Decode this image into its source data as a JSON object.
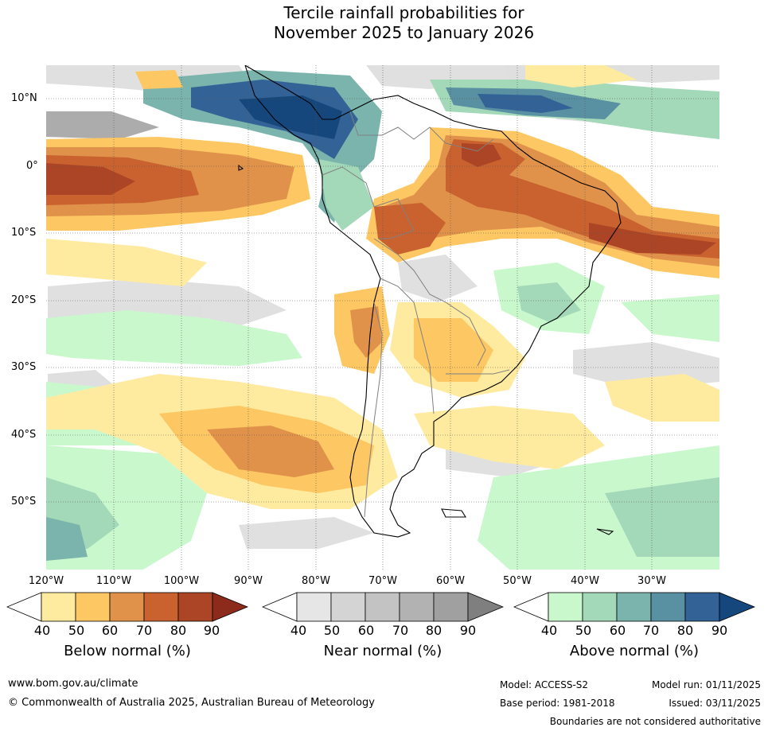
{
  "title": {
    "line1": "Tercile rainfall probabilities for",
    "line2": "November 2025 to January 2026"
  },
  "map": {
    "latitude_labels": [
      "10°N",
      "0°",
      "10°S",
      "20°S",
      "30°S",
      "40°S",
      "50°S"
    ],
    "longitude_labels": [
      "120°W",
      "110°W",
      "100°W",
      "90°W",
      "80°W",
      "70°W",
      "60°W",
      "50°W",
      "40°W",
      "30°W"
    ],
    "longitude_values": [
      -120,
      -110,
      -100,
      -90,
      -80,
      -70,
      -60,
      -50,
      -40,
      -30
    ],
    "latitude_values": [
      10,
      0,
      -10,
      -20,
      -30,
      -40,
      -50
    ],
    "lon_range": [
      -120,
      -20
    ],
    "lat_range": [
      -60,
      15
    ]
  },
  "legend": {
    "below": {
      "title": "Below normal (%)",
      "ticks": [
        "40",
        "50",
        "60",
        "70",
        "80",
        "90"
      ],
      "colors": [
        "#ffffff",
        "#feeb9f",
        "#fdc763",
        "#e0924a",
        "#c9622f",
        "#ac4526",
        "#8c2b1b"
      ]
    },
    "near": {
      "title": "Near normal (%)",
      "ticks": [
        "40",
        "50",
        "60",
        "70",
        "80",
        "90"
      ],
      "colors": [
        "#ffffff",
        "#e6e6e6",
        "#d4d4d4",
        "#c3c3c3",
        "#b2b2b2",
        "#a0a0a0",
        "#7f7f7f"
      ]
    },
    "above": {
      "title": "Above normal (%)",
      "ticks": [
        "40",
        "50",
        "60",
        "70",
        "80",
        "90"
      ],
      "colors": [
        "#ffffff",
        "#c9f8cd",
        "#a3d8b9",
        "#7bb4ac",
        "#5990a2",
        "#336396",
        "#15477d"
      ]
    }
  },
  "footer": {
    "url": "www.bom.gov.au/climate",
    "copyright": "© Commonwealth of Australia 2025, Australian Bureau of Meteorology",
    "model": "Model: ACCESS-S2",
    "base_period": "Base period: 1981-2018",
    "model_run": "Model run: 01/11/2025",
    "issued": "Issued: 03/11/2025",
    "disclaimer": "Boundaries are not considered authoritative"
  }
}
